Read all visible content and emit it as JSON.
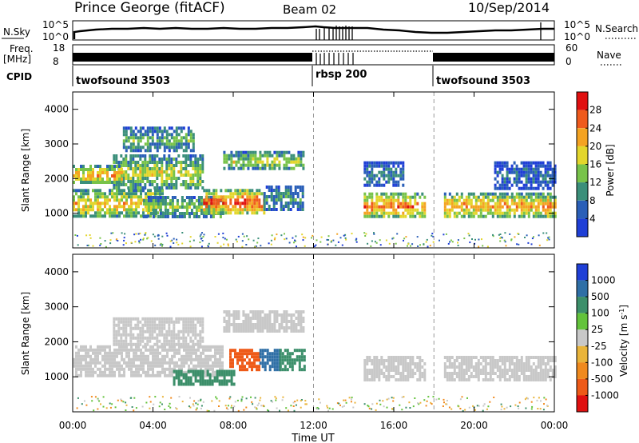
{
  "header": {
    "station": "Prince George (fitACF)",
    "beam": "Beam 02",
    "date": "10/Sep/2014"
  },
  "noise_panel": {
    "left_label": "N.Sky",
    "right_label": "N.Search",
    "left_ticks": [
      "10^5",
      "10^0"
    ],
    "right_ticks": [
      "10^5",
      "10^0"
    ]
  },
  "freq_panel": {
    "left_label_top": "Freq.",
    "left_label_bottom": "[MHz]",
    "right_label": "Nave",
    "left_ticks": [
      "18",
      "8"
    ],
    "right_ticks": [
      "60",
      "0"
    ]
  },
  "cpid": {
    "label": "CPID",
    "segments": [
      {
        "name": "twofsound",
        "id": "3503",
        "start_hour": 0
      },
      {
        "name": "rbsp",
        "id": "200",
        "start_hour": 12
      },
      {
        "name": "twofsound",
        "id": "3503",
        "start_hour": 18
      }
    ]
  },
  "x_axis": {
    "title": "Time UT",
    "range_hours": [
      0,
      24
    ],
    "ticks": [
      "00:00",
      "04:00",
      "08:00",
      "12:00",
      "16:00",
      "20:00",
      "00:00"
    ]
  },
  "power_colorbar": {
    "title": "Power [dB]",
    "ticks": [
      "28",
      "24",
      "20",
      "16",
      "12",
      "8",
      "4"
    ],
    "colors": [
      "#1f3fd6",
      "#2a5fb8",
      "#3b8f7a",
      "#78c34a",
      "#e3d62c",
      "#f4a322",
      "#ef5a1c",
      "#e01010"
    ]
  },
  "velocity_colorbar": {
    "title": "Velocity [m s^-1]",
    "ticks": [
      "1000",
      "500",
      "100",
      "25",
      "-25",
      "-100",
      "-500",
      "-1000"
    ],
    "colors": [
      "#1f3fd6",
      "#2f6fa6",
      "#3c8f6a",
      "#63c33b",
      "#c8c8c8",
      "#e9b43a",
      "#f08a1e",
      "#ee5a18",
      "#e01010"
    ]
  },
  "chart_data": {
    "type": "heatmap",
    "title": "Prince George (fitACF)",
    "subtitle": "Beam 02",
    "xlabel": "Time UT",
    "ylabel": "Slant Range [km]",
    "xlim": [
      0,
      24
    ],
    "ylim": [
      0,
      4500
    ],
    "y_ticks": [
      1000,
      2000,
      3000,
      4000
    ],
    "x_tick_hours": [
      0,
      4,
      8,
      12,
      16,
      20,
      24
    ],
    "mode_changes_hours": [
      12,
      18
    ],
    "panels": [
      {
        "name": "power",
        "clabel": "Power [dB]",
        "clim": [
          0,
          30
        ],
        "regions": [
          {
            "t": [
              0,
              4.5
            ],
            "r": [
              900,
              1700
            ],
            "v": 20
          },
          {
            "t": [
              2,
              6.5
            ],
            "r": [
              1700,
              2700
            ],
            "v": 16
          },
          {
            "t": [
              0,
              2.5
            ],
            "r": [
              1900,
              2400
            ],
            "v": 22
          },
          {
            "t": [
              2.5,
              6
            ],
            "r": [
              2800,
              3500
            ],
            "v": 12
          },
          {
            "t": [
              3.5,
              7.5
            ],
            "r": [
              900,
              1500
            ],
            "v": 14
          },
          {
            "t": [
              6.5,
              9.5
            ],
            "r": [
              1000,
              1700
            ],
            "v": 26
          },
          {
            "t": [
              9.5,
              11.5
            ],
            "r": [
              1100,
              1800
            ],
            "v": 10
          },
          {
            "t": [
              7.5,
              11.5
            ],
            "r": [
              2300,
              2800
            ],
            "v": 16
          },
          {
            "t": [
              14.5,
              17.5
            ],
            "r": [
              900,
              1600
            ],
            "v": 24
          },
          {
            "t": [
              14.5,
              16.5
            ],
            "r": [
              1800,
              2500
            ],
            "v": 8
          },
          {
            "t": [
              18.5,
              24
            ],
            "r": [
              900,
              1600
            ],
            "v": 22
          },
          {
            "t": [
              21,
              24
            ],
            "r": [
              1700,
              2500
            ],
            "v": 6
          }
        ]
      },
      {
        "name": "velocity",
        "clabel": "Velocity [m s^-1]",
        "clim": [
          -1000,
          1000
        ],
        "regions": [
          {
            "t": [
              0,
              7.5
            ],
            "r": [
              1000,
              1900
            ],
            "v": 0
          },
          {
            "t": [
              2,
              6.5
            ],
            "r": [
              1900,
              2700
            ],
            "v": 0
          },
          {
            "t": [
              7.5,
              11.5
            ],
            "r": [
              2300,
              2900
            ],
            "v": 0
          },
          {
            "t": [
              7.8,
              9.3
            ],
            "r": [
              1200,
              1800
            ],
            "v": -1000
          },
          {
            "t": [
              9.3,
              10.3
            ],
            "r": [
              1200,
              1800
            ],
            "v": 600
          },
          {
            "t": [
              10.3,
              11.5
            ],
            "r": [
              1200,
              1800
            ],
            "v": 150
          },
          {
            "t": [
              5,
              8
            ],
            "r": [
              800,
              1200
            ],
            "v": 110
          },
          {
            "t": [
              14.5,
              17.5
            ],
            "r": [
              900,
              1600
            ],
            "v": 0
          },
          {
            "t": [
              18.5,
              24
            ],
            "r": [
              900,
              1600
            ],
            "v": 0
          }
        ]
      }
    ]
  }
}
